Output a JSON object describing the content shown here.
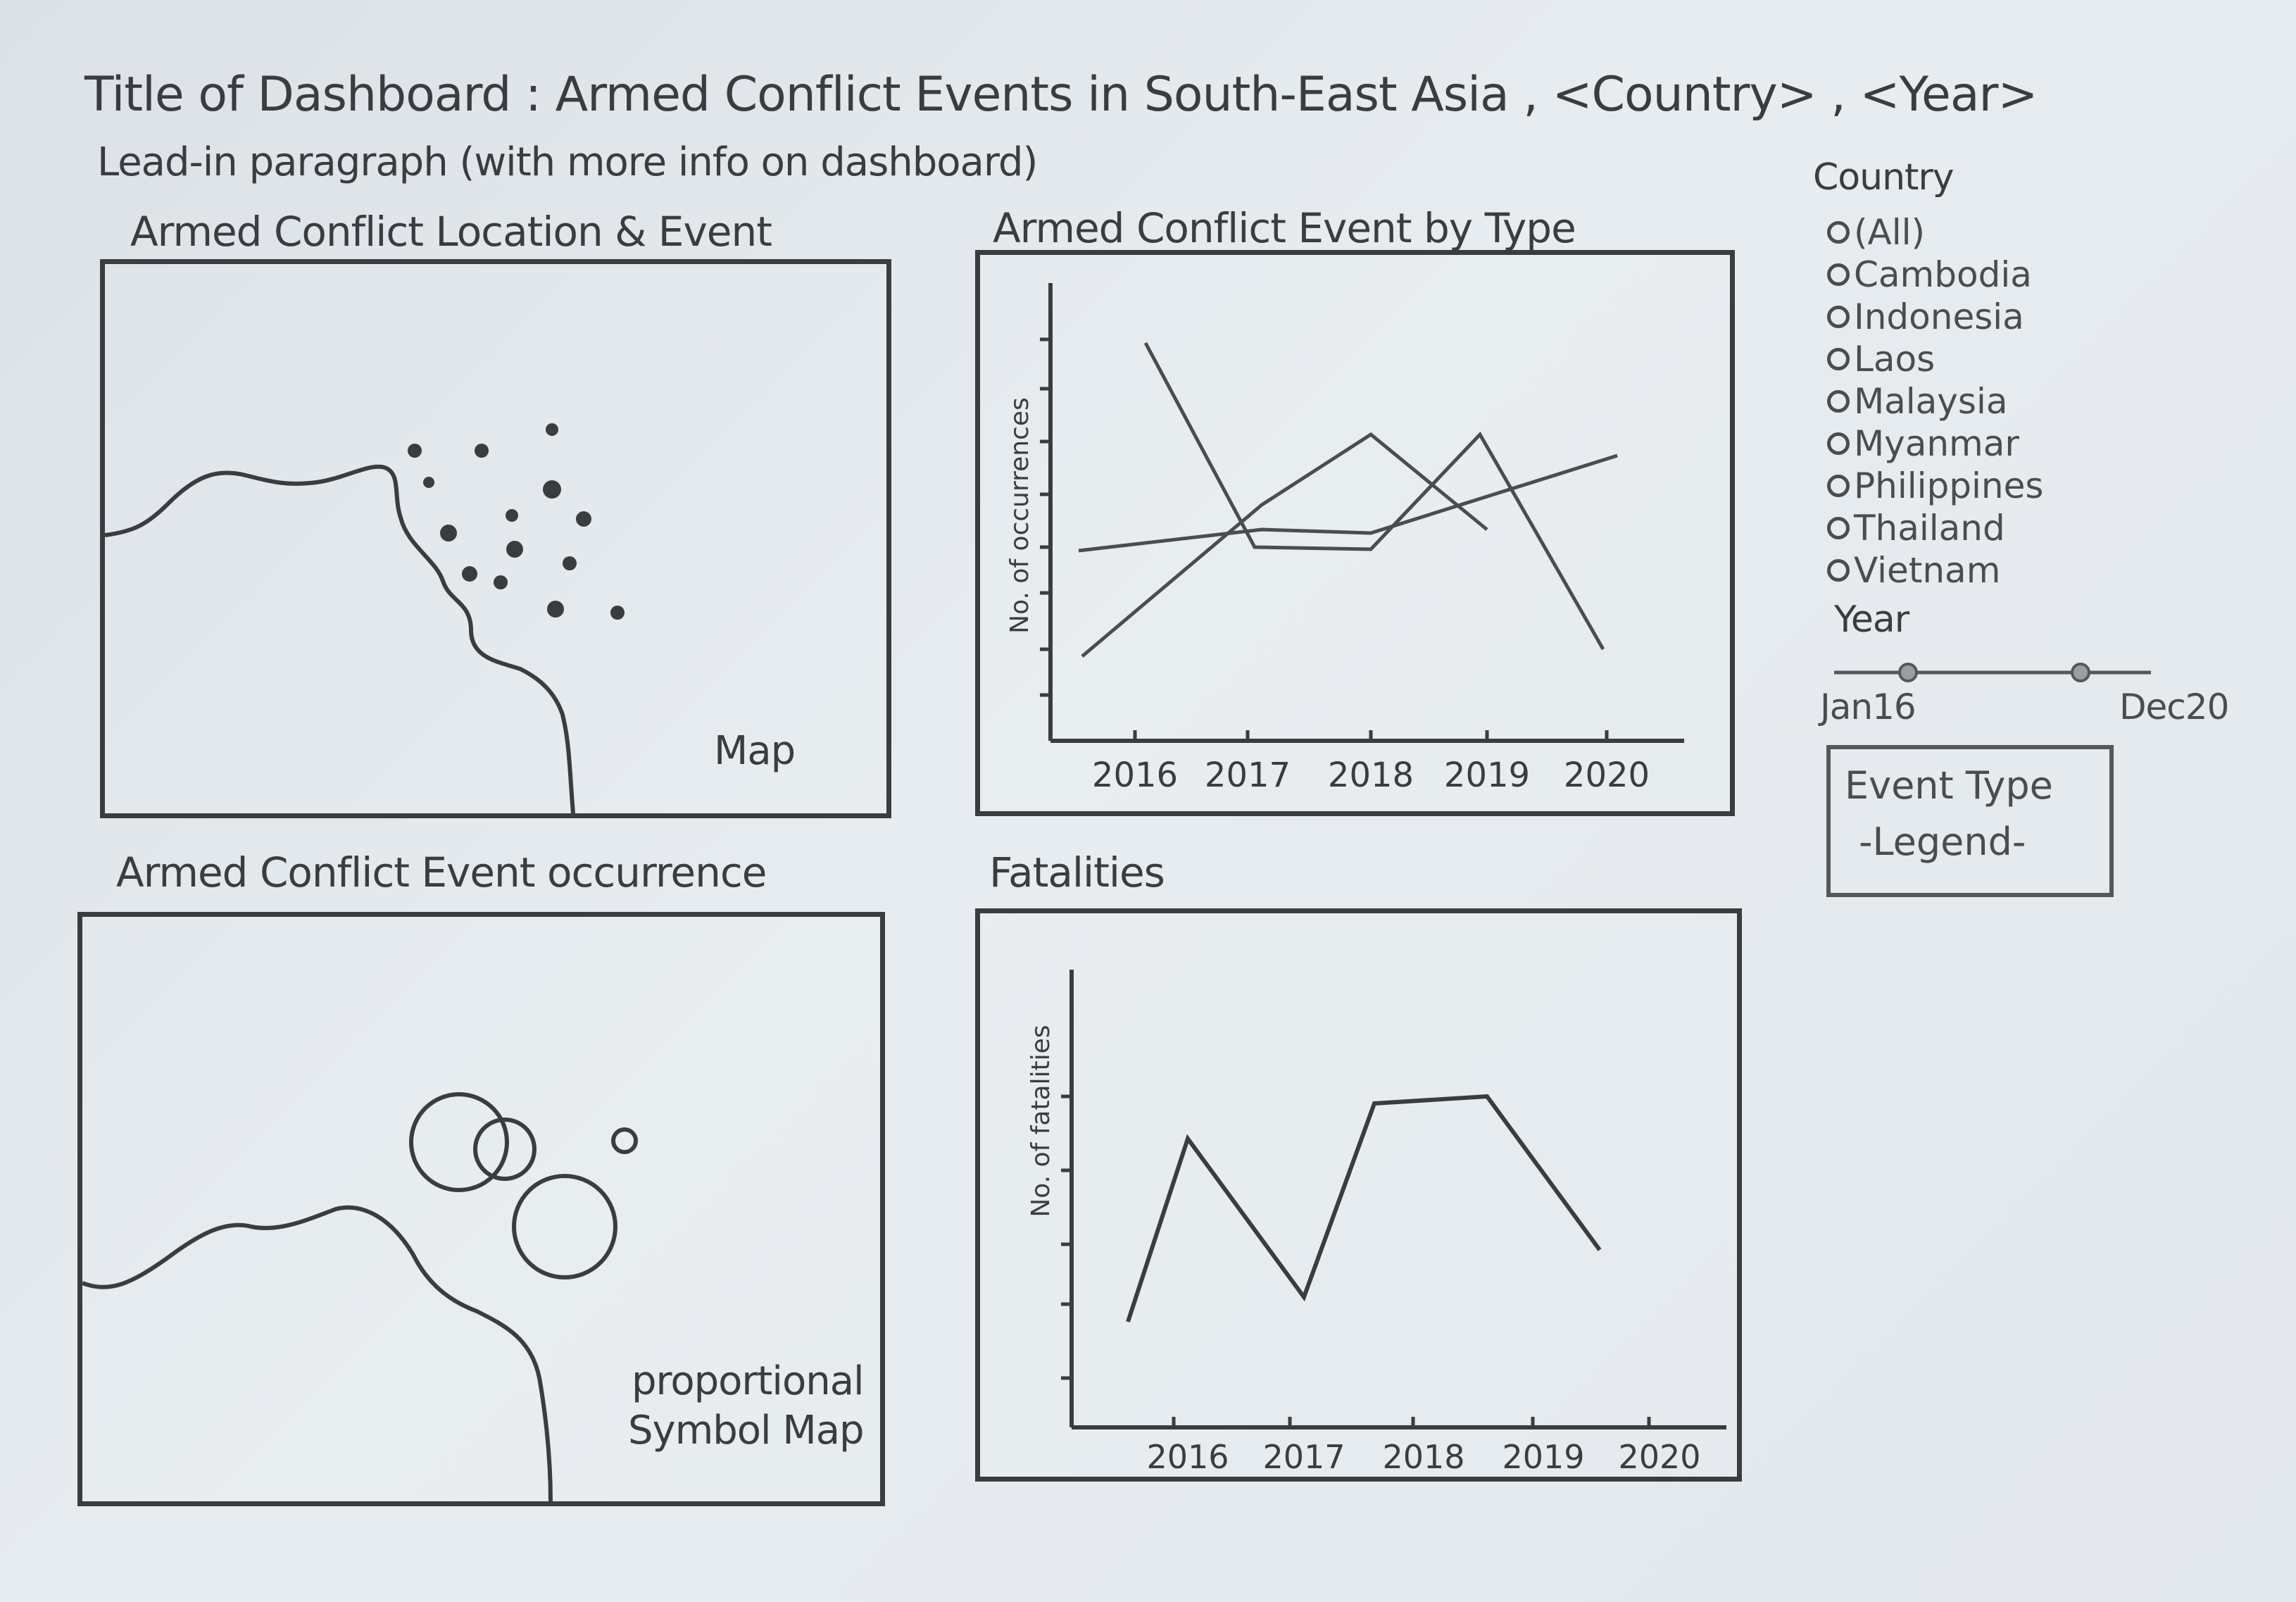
{
  "header": {
    "title_text": "Title of Dashboard : Armed Conflict Events in South-East Asia , <Country> , <Year>",
    "lead_in_text": "Lead-in paragraph (with more info on dashboard)"
  },
  "panels": {
    "location_event": {
      "title": "Armed Conflict Location & Event",
      "caption": "Map"
    },
    "event_by_type": {
      "title": "Armed Conflict Event by Type",
      "y_axis_label": "No. of occurrences",
      "x_ticks": [
        "2016",
        "2017",
        "2018",
        "2019",
        "2020"
      ]
    },
    "event_occurrence": {
      "title": "Armed Conflict Event occurrence",
      "caption_line1": "proportional",
      "caption_line2": "Symbol Map"
    },
    "fatalities": {
      "title": "Fatalities",
      "y_axis_label": "No. of fatalities",
      "x_ticks": [
        "2016",
        "2017",
        "2018",
        "2019",
        "2020"
      ]
    }
  },
  "filters": {
    "country_heading": "Country",
    "countries": [
      "(All)",
      "Cambodia",
      "Indonesia",
      "Laos",
      "Malaysia",
      "Myanmar",
      "Philippines",
      "Thailand",
      "Vietnam"
    ],
    "year_heading": "Year",
    "year_start_label": "Jan16",
    "year_end_label": "Dec20",
    "legend_title": "Event Type",
    "legend_subtitle": "-Legend-"
  }
}
